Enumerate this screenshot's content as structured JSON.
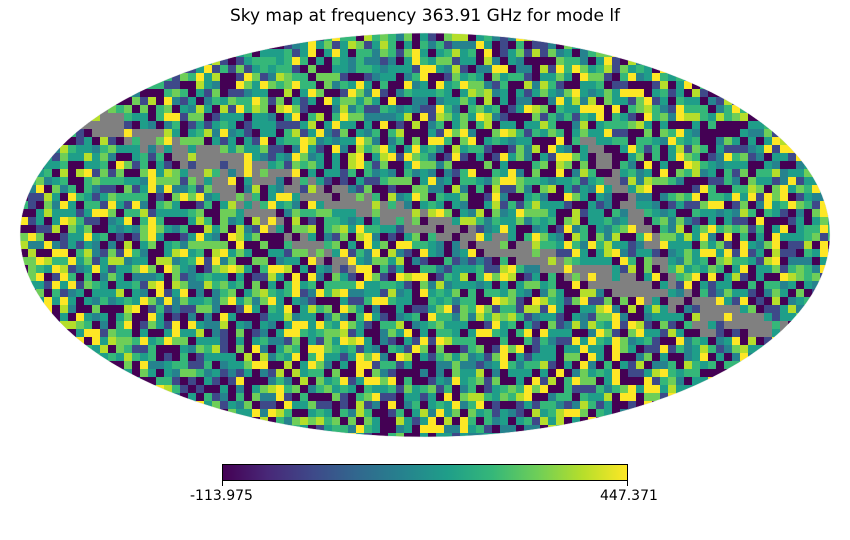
{
  "chart_data": {
    "type": "heatmap",
    "title": "Sky map at frequency 363.91 GHz for mode lf",
    "projection": "mollweide",
    "colormap": "viridis",
    "masked_pixel_color": "#808080",
    "colorbar": {
      "min": -113.975,
      "max": 447.371,
      "tick_labels": [
        "-113.975",
        "447.371"
      ],
      "orientation": "horizontal",
      "placement": "bottom"
    },
    "grid": false
  },
  "colors": {
    "viridis_stops": [
      "#440154",
      "#482878",
      "#3e4989",
      "#31688e",
      "#26828e",
      "#1f9e89",
      "#35b779",
      "#6ece58",
      "#b5de2b",
      "#fde725"
    ],
    "masked": "#808080"
  }
}
